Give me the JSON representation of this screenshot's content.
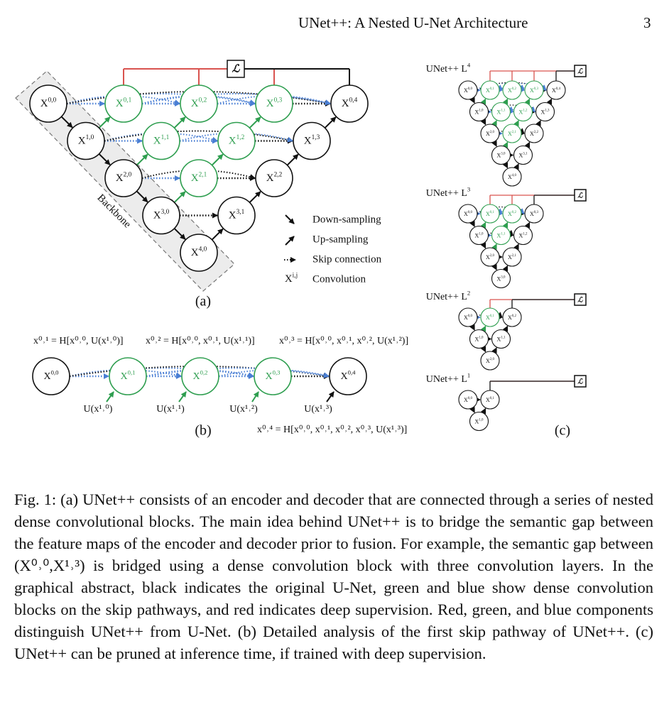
{
  "header": {
    "running_title": "UNet++: A Nested U-Net Architecture",
    "page_number": "3"
  },
  "figure": {
    "panel_a": {
      "label": "(a)",
      "backbone_label": "Backbone",
      "loss_symbol": "ℒ",
      "nodes": {
        "x00": {
          "base": "X",
          "sup": "0,0"
        },
        "x10": {
          "base": "X",
          "sup": "1,0"
        },
        "x20": {
          "base": "X",
          "sup": "2,0"
        },
        "x30": {
          "base": "X",
          "sup": "3,0"
        },
        "x40": {
          "base": "X",
          "sup": "4,0"
        },
        "x01": {
          "base": "X",
          "sup": "0,1"
        },
        "x02": {
          "base": "X",
          "sup": "0,2"
        },
        "x03": {
          "base": "X",
          "sup": "0,3"
        },
        "x04": {
          "base": "X",
          "sup": "0,4"
        },
        "x11": {
          "base": "X",
          "sup": "1,1"
        },
        "x12": {
          "base": "X",
          "sup": "1,2"
        },
        "x13": {
          "base": "X",
          "sup": "1,3"
        },
        "x21": {
          "base": "X",
          "sup": "2,1"
        },
        "x22": {
          "base": "X",
          "sup": "2,2"
        },
        "x31": {
          "base": "X",
          "sup": "3,1"
        }
      },
      "legend": {
        "down": "Down-sampling",
        "up": "Up-sampling",
        "skip": "Skip connection",
        "conv_symbol_base": "X",
        "conv_symbol_sup": "i,j",
        "conv": "Convolution"
      }
    },
    "panel_b": {
      "label": "(b)",
      "eq1": "x⁰˒¹ = H[x⁰˒⁰, U(x¹˒⁰)]",
      "eq2": "x⁰˒² = H[x⁰˒⁰, x⁰˒¹, U(x¹˒¹)]",
      "eq3": "x⁰˒³ = H[x⁰˒⁰, x⁰˒¹, x⁰˒², U(x¹˒²)]",
      "eq4": "x⁰˒⁴ = H[x⁰˒⁰, x⁰˒¹, x⁰˒², x⁰˒³, U(x¹˒³)]",
      "u1": "U(x¹˒⁰)",
      "u2": "U(x¹˒¹)",
      "u3": "U(x¹˒²)",
      "u4": "U(x¹˒³)",
      "nodes": {
        "x00": {
          "base": "X",
          "sup": "0,0"
        },
        "x01": {
          "base": "X",
          "sup": "0,1"
        },
        "x02": {
          "base": "X",
          "sup": "0,2"
        },
        "x03": {
          "base": "X",
          "sup": "0,3"
        },
        "x04": {
          "base": "X",
          "sup": "0,4"
        }
      }
    },
    "panel_c": {
      "label": "(c)",
      "loss_symbol": "ℒ",
      "titles": {
        "l4": {
          "base": "UNet++ L",
          "sup": "4"
        },
        "l3": {
          "base": "UNet++ L",
          "sup": "3"
        },
        "l2": {
          "base": "UNet++ L",
          "sup": "2"
        },
        "l1": {
          "base": "UNet++ L",
          "sup": "1"
        }
      }
    }
  },
  "caption": "Fig. 1: (a) UNet++ consists of an encoder and decoder that are connected through a series of nested dense convolutional blocks. The main idea behind UNet++ is to bridge the semantic gap between the feature maps of the encoder and decoder prior to fusion. For example, the semantic gap between (X⁰˒⁰,X¹˒³) is bridged using a dense convolution block with three convolution layers. In the graphical abstract, black indicates the original U-Net, green and blue show dense convolution blocks on the skip pathways, and red indicates deep supervision. Red, green, and blue components distinguish UNet++ from U-Net. (b) Detailed analysis of the first skip pathway of UNet++. (c) UNet++ can be pruned at inference time, if trained with deep supervision.",
  "colors": {
    "green": "#2e9e4f",
    "blue": "#4a7fd4",
    "red": "#d9534f",
    "black": "#111111",
    "backbone_fill": "#ececec"
  }
}
